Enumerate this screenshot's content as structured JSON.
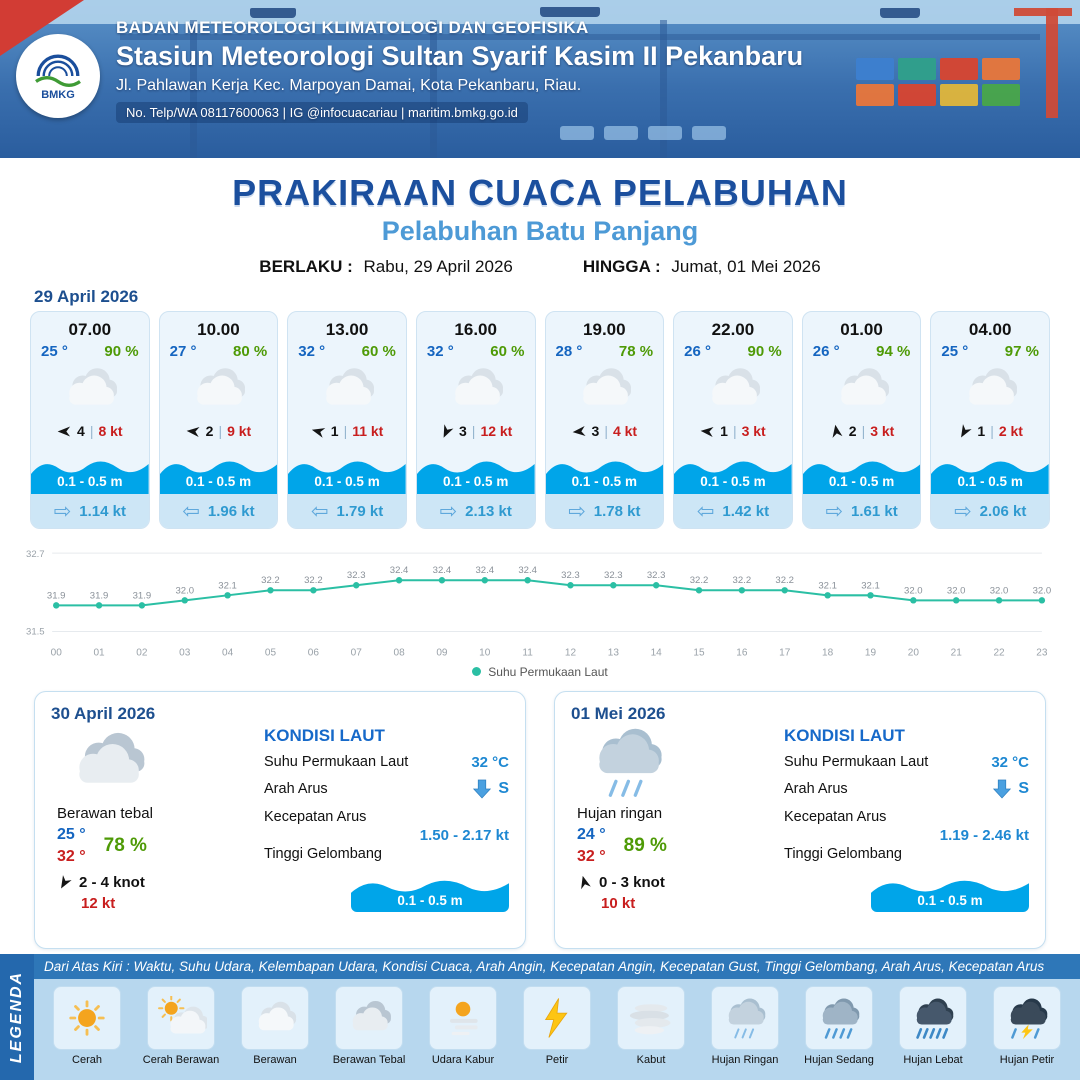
{
  "header": {
    "org": "BADAN METEOROLOGI KLIMATOLOGI DAN GEOFISIKA",
    "station": "Stasiun Meteorologi Sultan Syarif Kasim II Pekanbaru",
    "address": "Jl. Pahlawan Kerja Kec. Marpoyan Damai, Kota Pekanbaru, Riau.",
    "contact": "No. Telp/WA 08117600063 | IG @infocuacariau | maritim.bmkg.go.id",
    "logo_text": "BMKG"
  },
  "title": {
    "main": "PRAKIRAAN CUACA PELABUHAN",
    "sub": "Pelabuhan Batu Panjang",
    "berlaku_label": "BERLAKU :",
    "berlaku_value": "Rabu, 29 April 2026",
    "hingga_label": "HINGGA :",
    "hingga_value": "Jumat, 01 Mei 2026"
  },
  "forecast": {
    "date": "29 April 2026",
    "cards": [
      {
        "time": "07.00",
        "temp": "25 °",
        "rh": "90 %",
        "icon": "cloud",
        "wind_val": "4",
        "sep": "|",
        "gust": "8 kt",
        "wind_deg": 180,
        "wave": "0.1 - 0.5 m",
        "cur_glyph": "⇨",
        "cur_val": "1.14 kt"
      },
      {
        "time": "10.00",
        "temp": "27 °",
        "rh": "80 %",
        "icon": "cloud",
        "wind_val": "2",
        "sep": "|",
        "gust": "9 kt",
        "wind_deg": 185,
        "wave": "0.1 - 0.5 m",
        "cur_glyph": "⇦",
        "cur_val": "1.96 kt"
      },
      {
        "time": "13.00",
        "temp": "32 °",
        "rh": "60 %",
        "icon": "cloud",
        "wind_val": "1",
        "sep": "|",
        "gust": "11 kt",
        "wind_deg": 195,
        "wave": "0.1 - 0.5 m",
        "cur_glyph": "⇦",
        "cur_val": "1.79 kt"
      },
      {
        "time": "16.00",
        "temp": "32 °",
        "rh": "60 %",
        "icon": "cloud",
        "wind_val": "3",
        "sep": "|",
        "gust": "12 kt",
        "wind_deg": 115,
        "wave": "0.1 - 0.5 m",
        "cur_glyph": "⇨",
        "cur_val": "2.13 kt"
      },
      {
        "time": "19.00",
        "temp": "28 °",
        "rh": "78 %",
        "icon": "cloud",
        "wind_val": "3",
        "sep": "|",
        "gust": "4 kt",
        "wind_deg": 175,
        "wave": "0.1 - 0.5 m",
        "cur_glyph": "⇨",
        "cur_val": "1.78 kt"
      },
      {
        "time": "22.00",
        "temp": "26 °",
        "rh": "90 %",
        "icon": "cloud",
        "wind_val": "1",
        "sep": "|",
        "gust": "3 kt",
        "wind_deg": 185,
        "wave": "0.1 - 0.5 m",
        "cur_glyph": "⇦",
        "cur_val": "1.42 kt"
      },
      {
        "time": "01.00",
        "temp": "26 °",
        "rh": "94 %",
        "icon": "cloud",
        "wind_val": "2",
        "sep": "|",
        "gust": "3 kt",
        "wind_deg": 260,
        "wave": "0.1 - 0.5 m",
        "cur_glyph": "⇨",
        "cur_val": "1.61 kt"
      },
      {
        "time": "04.00",
        "temp": "25 °",
        "rh": "97 %",
        "icon": "cloud",
        "wind_val": "1",
        "sep": "|",
        "gust": "2 kt",
        "wind_deg": 120,
        "wave": "0.1 - 0.5 m",
        "cur_glyph": "⇨",
        "cur_val": "2.06 kt"
      }
    ]
  },
  "chart_data": {
    "type": "line",
    "series_name": "Suhu Permukaan Laut",
    "x": [
      "00",
      "01",
      "02",
      "03",
      "04",
      "05",
      "06",
      "07",
      "08",
      "09",
      "10",
      "11",
      "12",
      "13",
      "14",
      "15",
      "16",
      "17",
      "18",
      "19",
      "20",
      "21",
      "22",
      "23"
    ],
    "values": [
      31.9,
      31.9,
      31.9,
      32.0,
      32.1,
      32.2,
      32.2,
      32.3,
      32.4,
      32.4,
      32.4,
      32.4,
      32.3,
      32.3,
      32.3,
      32.2,
      32.2,
      32.2,
      32.1,
      32.1,
      32.0,
      32.0,
      32.0,
      32.0
    ],
    "ylim": [
      31.5,
      32.7
    ],
    "color": "#2bbfa4",
    "grid": true,
    "legend_position": "bottom"
  },
  "summaries": [
    {
      "date": "30 April 2026",
      "icon": "cloudthick",
      "condition": "Berawan tebal",
      "temp_min": "25 °",
      "temp_max": "32 °",
      "rh": "78 %",
      "wind_deg": 120,
      "wind_range": "2  - 4 knot",
      "gust": "12 kt",
      "sea": {
        "heading": "KONDISI LAUT",
        "sst_label": "Suhu Permukaan Laut",
        "sst": "32 °C",
        "arah_label": "Arah Arus",
        "arah": "S",
        "kec_label": "Kecepatan Arus",
        "kec": "1.50  - 2.17 kt",
        "wave_label": "Tinggi Gelombang",
        "wave": "0.1 - 0.5 m"
      }
    },
    {
      "date": "01 Mei 2026",
      "icon": "rainlight",
      "condition": "Hujan ringan",
      "temp_min": "24 °",
      "temp_max": "32 °",
      "rh": "89 %",
      "wind_deg": 255,
      "wind_range": "0  - 3 knot",
      "gust": "10 kt",
      "sea": {
        "heading": "KONDISI LAUT",
        "sst_label": "Suhu Permukaan Laut",
        "sst": "32 °C",
        "arah_label": "Arah Arus",
        "arah": "S",
        "kec_label": "Kecepatan Arus",
        "kec": "1.19  - 2.46 kt",
        "wave_label": "Tinggi Gelombang",
        "wave": "0.1 - 0.5 m"
      }
    }
  ],
  "legend": {
    "title": "LEGENDA",
    "description": "Dari Atas Kiri : Waktu, Suhu Udara, Kelembapan Udara, Kondisi Cuaca, Arah Angin, Kecepatan Angin, Kecepatan Gust, Tinggi Gelombang, Arah Arus, Kecepatan Arus",
    "items": [
      {
        "icon": "sun",
        "label": "Cerah"
      },
      {
        "icon": "suncloud",
        "label": "Cerah Berawan"
      },
      {
        "icon": "cloud",
        "label": "Berawan"
      },
      {
        "icon": "cloudthick",
        "label": "Berawan Tebal"
      },
      {
        "icon": "haze",
        "label": "Udara Kabur"
      },
      {
        "icon": "bolt",
        "label": "Petir"
      },
      {
        "icon": "fog",
        "label": "Kabut"
      },
      {
        "icon": "rainlight",
        "label": "Hujan Ringan"
      },
      {
        "icon": "rainmed",
        "label": "Hujan Sedang"
      },
      {
        "icon": "rainheavy",
        "label": "Hujan Lebat"
      },
      {
        "icon": "rainstorm",
        "label": "Hujan Petir"
      }
    ]
  }
}
